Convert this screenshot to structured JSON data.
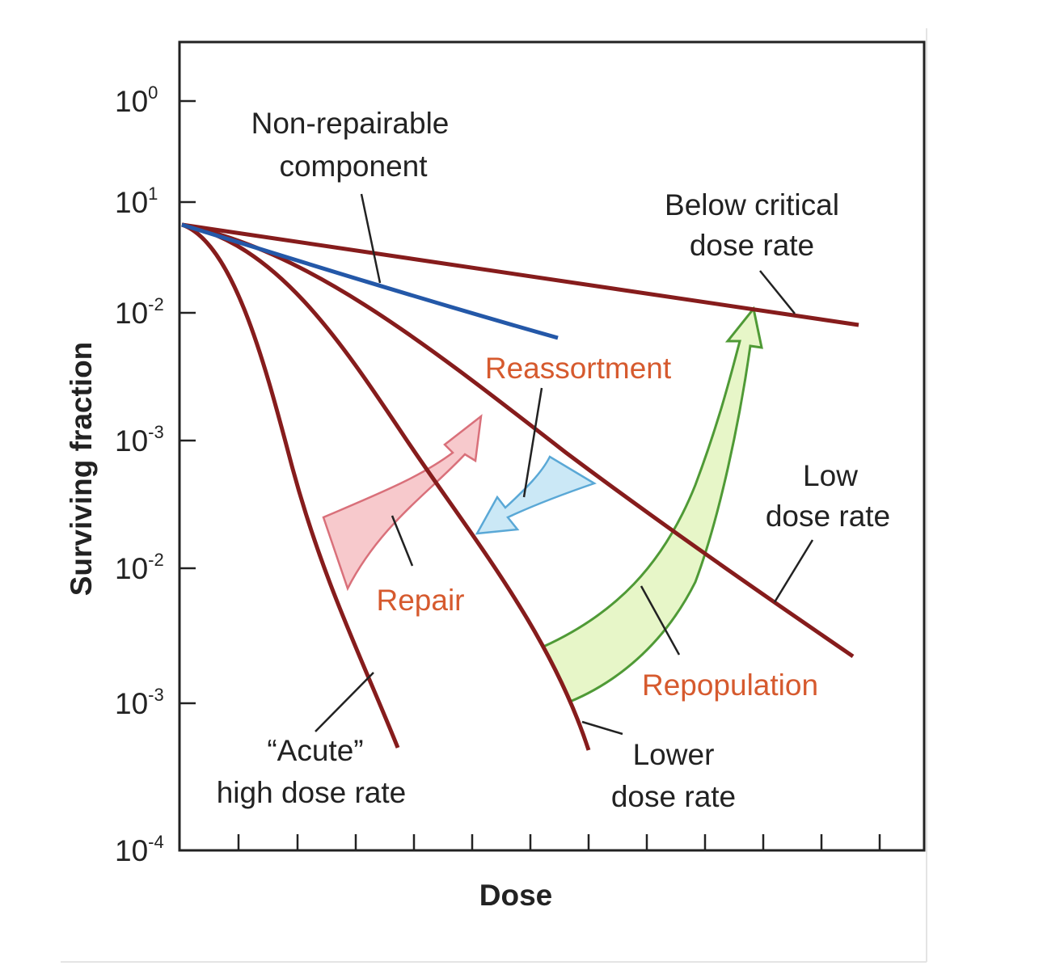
{
  "axes": {
    "y_label": "Surviving fraction",
    "x_label": "Dose",
    "y_ticks": [
      {
        "base": "10",
        "exponent": "0"
      },
      {
        "base": "10",
        "exponent": "1"
      },
      {
        "base": "10",
        "exponent": "-2"
      },
      {
        "base": "10",
        "exponent": "-3"
      },
      {
        "base": "10",
        "exponent": "-2"
      },
      {
        "base": "10",
        "exponent": "-3"
      },
      {
        "base": "10",
        "exponent": "-4"
      }
    ]
  },
  "curve_labels": {
    "non_repairable": [
      "Non-repairable",
      "component"
    ],
    "below_critical": [
      "Below critical",
      "dose rate"
    ],
    "low": [
      "Low",
      "dose rate"
    ],
    "acute": [
      "“Acute”",
      "high dose rate"
    ],
    "lower": [
      "Lower",
      "dose rate"
    ]
  },
  "processes": {
    "reassortment": "Reassortment",
    "repair": "Repair",
    "repopulation": "Repopulation"
  }
}
